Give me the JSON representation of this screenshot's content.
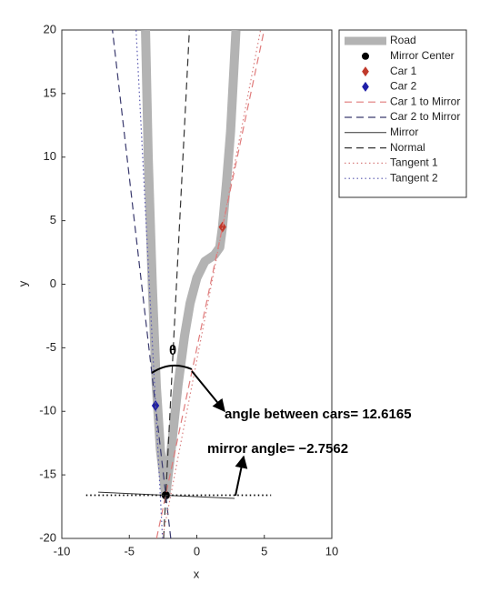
{
  "chart_data": {
    "type": "line",
    "xlabel": "x",
    "ylabel": "y",
    "xlim": [
      -10,
      10
    ],
    "ylim": [
      -20,
      20
    ],
    "xticks": [
      -10,
      -5,
      0,
      5,
      10
    ],
    "yticks": [
      -20,
      -15,
      -10,
      -5,
      0,
      5,
      10,
      15,
      20
    ],
    "legend": "top-right",
    "series": [
      {
        "name": "Road",
        "color": "#b3b3b3",
        "line": "solid",
        "width": 10,
        "x": [
          -3.8,
          -3.6,
          -3.3,
          -3.0,
          -2.7,
          -2.3,
          -1.9,
          -1.4,
          -0.9,
          -0.5,
          0.0,
          0.6,
          1.3,
          1.7,
          1.9,
          2.2,
          2.5,
          2.7,
          2.9
        ],
        "values": [
          20,
          10,
          0,
          -8,
          -13,
          -16.6,
          -13,
          -8,
          -4,
          -1.5,
          0.5,
          1.8,
          2.3,
          2.9,
          4.5,
          8,
          12,
          16,
          20
        ]
      },
      {
        "name": "Mirror Center",
        "color": "#000000",
        "line": "none",
        "marker": "circle",
        "x": [
          -2.3
        ],
        "values": [
          -16.6
        ]
      },
      {
        "name": "Car 1",
        "color": "#c0392b",
        "line": "none",
        "marker": "diamond",
        "x": [
          1.9
        ],
        "values": [
          4.5
        ]
      },
      {
        "name": "Car 2",
        "color": "#1f1fa8",
        "line": "none",
        "marker": "diamond",
        "x": [
          -3.06
        ],
        "values": [
          -9.55
        ]
      },
      {
        "name": "Car 1 to Mirror",
        "color": "#e07b7b",
        "line": "dashed",
        "width": 1.2,
        "x": [
          -2.98,
          4.99
        ],
        "values": [
          -20,
          20
        ]
      },
      {
        "name": "Car 2 to Mirror",
        "color": "#3a3a6e",
        "line": "dashed",
        "width": 1.2,
        "x": [
          -1.93,
          -6.25
        ],
        "values": [
          -20,
          20
        ]
      },
      {
        "name": "Mirror",
        "color": "#333333",
        "line": "solid",
        "width": 1,
        "x": [
          -7.3,
          2.8
        ],
        "values": [
          -16.36,
          -16.85
        ]
      },
      {
        "name": "Normal",
        "color": "#333333",
        "line": "dashed",
        "width": 1.2,
        "x": [
          -2.46,
          -0.55
        ],
        "values": [
          -20,
          20
        ]
      },
      {
        "name": "Tangent 1",
        "color": "#d98080",
        "line": "dotted",
        "width": 1.2,
        "x": [
          -2.55,
          4.72
        ],
        "values": [
          -20,
          20
        ]
      },
      {
        "name": "Tangent 2",
        "color": "#5a5ab0",
        "line": "dotted",
        "width": 1.2,
        "x": [
          -2.54,
          -4.5
        ],
        "values": [
          -20,
          20
        ]
      },
      {
        "color": "#000000",
        "line": "dotted",
        "width": 1.8,
        "x": [
          -8.2,
          5.5
        ],
        "values": [
          -16.6,
          -16.6
        ]
      }
    ],
    "annotations": [
      "θ",
      "angle between cars= 12.6165",
      "mirror angle= −2.7562"
    ]
  }
}
